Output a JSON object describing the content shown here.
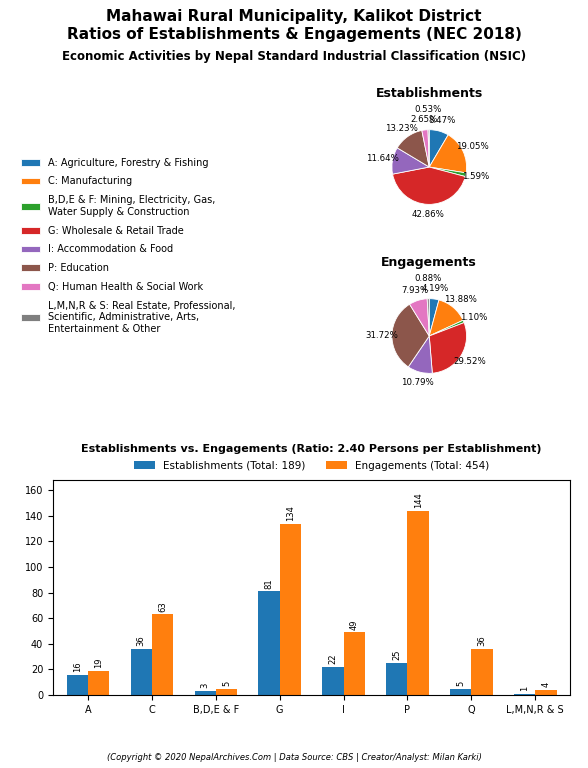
{
  "title": "Mahawai Rural Municipality, Kalikot District\nRatios of Establishments & Engagements (NEC 2018)",
  "subtitle": "Economic Activities by Nepal Standard Industrial Classification (NSIC)",
  "annotations": [
    "(Copyright © 2020 NepalArchives.Com | Data Source: CBS | Creator/Analyst: Milan Karki)"
  ],
  "chart_data": [
    {
      "type": "pie",
      "title": "Establishments",
      "categories": [
        "A: Agriculture, Forestry & Fishing",
        "C: Manufacturing",
        "B,D,E & F: Mining, Electricity, Gas,\nWater Supply & Construction",
        "G: Wholesale & Retail Trade",
        "I: Accommodation & Food",
        "P: Education",
        "Q: Human Health & Social Work",
        "L,M,N,R & S: Real Estate, Professional,\nScientific, Administrative, Arts,\nEntertainment & Other"
      ],
      "values": [
        8.47,
        19.05,
        1.59,
        42.86,
        11.64,
        13.23,
        2.65,
        0.53
      ],
      "value_labels": [
        "8.47%",
        "19.05%",
        "1.59%",
        "42.86%",
        "11.64%",
        "13.23%",
        "2.65%",
        "0.53%"
      ],
      "data_labels": true,
      "legend": "center left"
    },
    {
      "type": "pie",
      "title": "Engagements",
      "categories": [
        "A: Agriculture, Forestry & Fishing",
        "C: Manufacturing",
        "B,D,E & F: Mining, Electricity, Gas,\nWater Supply & Construction",
        "G: Wholesale & Retail Trade",
        "I: Accommodation & Food",
        "P: Education",
        "Q: Human Health & Social Work",
        "L,M,N,R & S: Real Estate, Professional,\nScientific, Administrative, Arts,\nEntertainment & Other"
      ],
      "values": [
        4.19,
        13.88,
        1.1,
        29.52,
        10.79,
        31.72,
        7.93,
        0.88
      ],
      "value_labels": [
        "4.19%",
        "13.88%",
        "1.10%",
        "29.52%",
        "10.79%",
        "31.72%",
        "7.93%",
        "0.88%"
      ],
      "data_labels": true
    },
    {
      "type": "bar",
      "title": "Establishments vs. Engagements (Ratio: 2.40 Persons per Establishment)",
      "categories": [
        "A",
        "C",
        "B,D,E & F",
        "G",
        "I",
        "P",
        "Q",
        "L,M,N,R & S"
      ],
      "series": [
        {
          "name": "Establishments (Total: 189)",
          "values": [
            16,
            36,
            3,
            81,
            22,
            25,
            5,
            1
          ]
        },
        {
          "name": "Engagements (Total: 454)",
          "values": [
            19,
            63,
            5,
            134,
            49,
            144,
            36,
            4
          ]
        }
      ],
      "ylim": [
        0,
        168
      ],
      "yticks": [
        0,
        20,
        40,
        60,
        80,
        100,
        120,
        140,
        160
      ],
      "data_labels": true,
      "legend": "lower center"
    }
  ]
}
